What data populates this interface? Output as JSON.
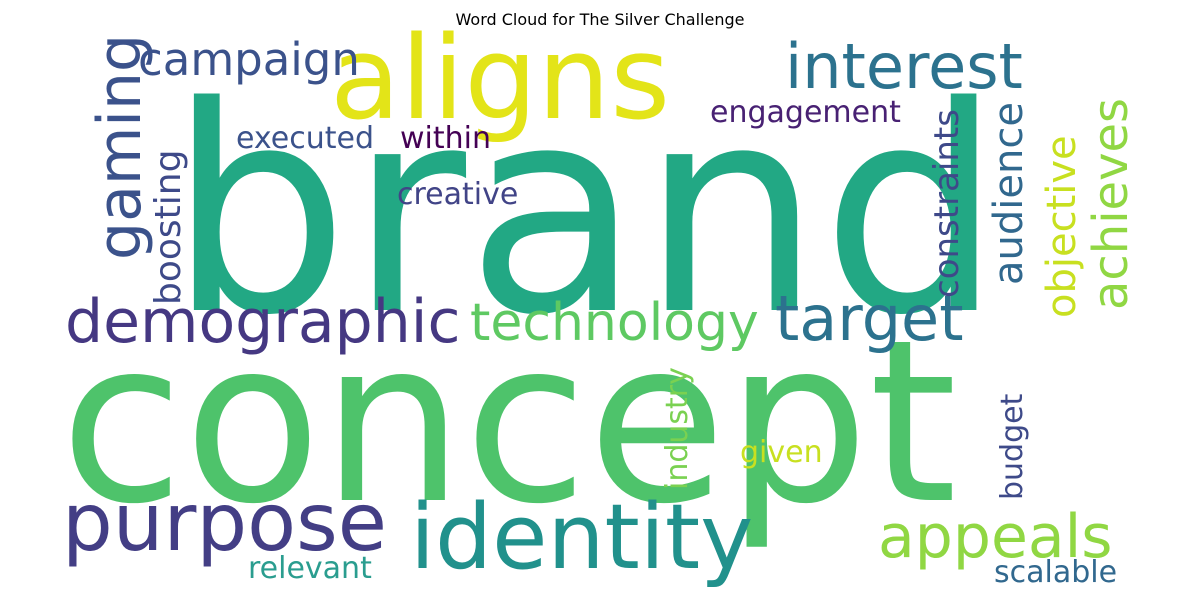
{
  "chart_data": {
    "type": "word-cloud",
    "title": "Word Cloud for The Silver Challenge",
    "words": [
      {
        "text": "brand",
        "color": "#22a884",
        "weight": 1.0
      },
      {
        "text": "concept",
        "color": "#4ec36b",
        "weight": 0.95
      },
      {
        "text": "aligns",
        "color": "#e3e418",
        "weight": 0.55
      },
      {
        "text": "identity",
        "color": "#21918c",
        "weight": 0.45
      },
      {
        "text": "purpose",
        "color": "#433e85",
        "weight": 0.45
      },
      {
        "text": "interest",
        "color": "#2c728e",
        "weight": 0.38
      },
      {
        "text": "demographic",
        "color": "#453882",
        "weight": 0.36
      },
      {
        "text": "technology",
        "color": "#5ec962",
        "weight": 0.33
      },
      {
        "text": "target",
        "color": "#2c728e",
        "weight": 0.33
      },
      {
        "text": "appeals",
        "color": "#90d743",
        "weight": 0.33
      },
      {
        "text": "gaming",
        "color": "#3b528b",
        "weight": 0.3
      },
      {
        "text": "achieves",
        "color": "#90d743",
        "weight": 0.28
      },
      {
        "text": "campaign",
        "color": "#3b528b",
        "weight": 0.24
      },
      {
        "text": "audience",
        "color": "#31688e",
        "weight": 0.24
      },
      {
        "text": "objective",
        "color": "#c8e020",
        "weight": 0.24
      },
      {
        "text": "boosting",
        "color": "#3e4a89",
        "weight": 0.22
      },
      {
        "text": "constraints",
        "color": "#3e4989",
        "weight": 0.2
      },
      {
        "text": "engagement",
        "color": "#482173",
        "weight": 0.18
      },
      {
        "text": "within",
        "color": "#440154",
        "weight": 0.18
      },
      {
        "text": "executed",
        "color": "#3b528b",
        "weight": 0.17
      },
      {
        "text": "creative",
        "color": "#414487",
        "weight": 0.17
      },
      {
        "text": "industry",
        "color": "#7ad151",
        "weight": 0.17
      },
      {
        "text": "budget",
        "color": "#3e4a89",
        "weight": 0.17
      },
      {
        "text": "given",
        "color": "#c8e020",
        "weight": 0.17
      },
      {
        "text": "relevant",
        "color": "#2a9d8f",
        "weight": 0.17
      },
      {
        "text": "scalable",
        "color": "#31688e",
        "weight": 0.17
      }
    ]
  }
}
